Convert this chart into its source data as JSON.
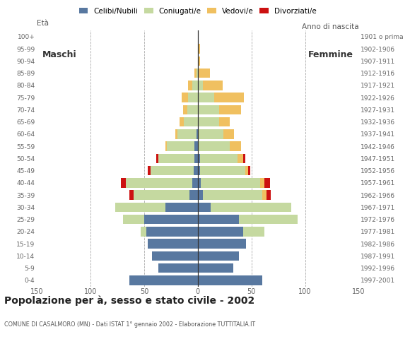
{
  "age_groups": [
    "0-4",
    "5-9",
    "10-14",
    "15-19",
    "20-24",
    "25-29",
    "30-34",
    "35-39",
    "40-44",
    "45-49",
    "50-54",
    "55-59",
    "60-64",
    "65-69",
    "70-74",
    "75-79",
    "80-84",
    "85-89",
    "90-94",
    "95-99",
    "100+"
  ],
  "birth_years": [
    "1997-2001",
    "1992-1996",
    "1987-1991",
    "1982-1986",
    "1977-1981",
    "1972-1976",
    "1967-1971",
    "1962-1966",
    "1957-1961",
    "1952-1956",
    "1947-1951",
    "1942-1946",
    "1937-1941",
    "1932-1936",
    "1927-1931",
    "1922-1926",
    "1917-1921",
    "1912-1916",
    "1907-1911",
    "1902-1906",
    "1901 o prima"
  ],
  "males": {
    "celibe": [
      64,
      37,
      43,
      47,
      48,
      50,
      30,
      8,
      5,
      4,
      3,
      3,
      1,
      0,
      0,
      0,
      0,
      0,
      0,
      0,
      0
    ],
    "coniugato": [
      0,
      0,
      0,
      0,
      5,
      20,
      47,
      52,
      62,
      40,
      34,
      26,
      18,
      13,
      10,
      9,
      5,
      1,
      0,
      0,
      0
    ],
    "vedovo": [
      0,
      0,
      0,
      0,
      0,
      0,
      0,
      0,
      0,
      0,
      0,
      1,
      2,
      4,
      4,
      6,
      4,
      2,
      0,
      0,
      0
    ],
    "divorziato": [
      0,
      0,
      0,
      0,
      0,
      0,
      0,
      4,
      5,
      3,
      2,
      0,
      0,
      0,
      0,
      0,
      0,
      0,
      0,
      0,
      0
    ]
  },
  "females": {
    "nubile": [
      60,
      33,
      38,
      45,
      42,
      38,
      12,
      5,
      3,
      2,
      2,
      0,
      0,
      0,
      0,
      0,
      0,
      0,
      0,
      0,
      0
    ],
    "coniugata": [
      0,
      0,
      0,
      0,
      20,
      55,
      75,
      55,
      55,
      42,
      35,
      30,
      24,
      20,
      20,
      15,
      5,
      1,
      0,
      0,
      0
    ],
    "vedova": [
      0,
      0,
      0,
      0,
      0,
      0,
      0,
      4,
      4,
      3,
      5,
      10,
      10,
      10,
      20,
      28,
      18,
      10,
      2,
      2,
      0
    ],
    "divorziata": [
      0,
      0,
      0,
      0,
      0,
      0,
      0,
      4,
      5,
      2,
      2,
      0,
      0,
      0,
      0,
      0,
      0,
      0,
      0,
      0,
      0
    ]
  },
  "colors": {
    "celibe": "#5878a0",
    "coniugato": "#c5d9a0",
    "vedovo": "#f0c060",
    "divorziato": "#cc1111"
  },
  "xlim": 150,
  "title": "Popolazione per à, sesso e stato civile - 2002",
  "subtitle": "COMUNE DI CASALMORO (MN) - Dati ISTAT 1° gennaio 2002 - Elaborazione TUTTITALIA.IT",
  "ylabel_left": "Età",
  "ylabel_right": "Anno di nascita",
  "legend_labels": [
    "Celibi/Nubili",
    "Coniugati/e",
    "Vedovi/e",
    "Divorziati/e"
  ],
  "background_color": "#ffffff",
  "grid_color": "#aaaaaa",
  "maschi_label": "Maschi",
  "femmine_label": "Femmine"
}
